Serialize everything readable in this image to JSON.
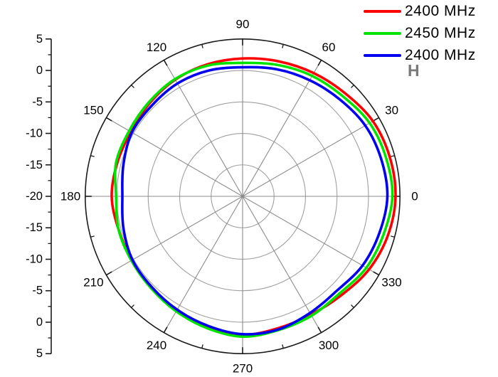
{
  "chart_data": {
    "type": "line",
    "polar": true,
    "title": "",
    "xlabel": "",
    "ylabel": "",
    "angular_unit": "degrees",
    "angle_labels": [
      "0",
      "30",
      "60",
      "90",
      "120",
      "150",
      "180",
      "210",
      "240",
      "270",
      "300",
      "330"
    ],
    "angle_tick_major_deg": 30,
    "angle_tick_minor_deg": 15,
    "radial_axis": {
      "center_value": -20,
      "outer_value": 5,
      "major_step": 5,
      "minor_step": 2.5,
      "tick_labels": [
        "5",
        "0",
        "-5",
        "-10",
        "-15",
        "-20",
        "-15",
        "-10",
        "-5",
        "0",
        "5"
      ],
      "grid_circle_values": [
        -15,
        -10,
        -5,
        0
      ]
    },
    "ylim": [
      -20,
      5
    ],
    "x": [
      0,
      15,
      30,
      45,
      60,
      75,
      90,
      105,
      120,
      135,
      150,
      165,
      180,
      195,
      210,
      225,
      240,
      255,
      270,
      285,
      300,
      315,
      330,
      345
    ],
    "series": [
      {
        "name": "2400 MHz",
        "color": "#ff0000",
        "values": [
          4.3,
          4.2,
          3.9,
          3.1,
          2.6,
          2.2,
          1.9,
          1.7,
          1.4,
          0.9,
          0.5,
          0.6,
          0.8,
          0.4,
          0.3,
          0.5,
          0.8,
          1.4,
          2.0,
          1.7,
          1.7,
          2.2,
          3.2,
          3.9
        ]
      },
      {
        "name": "2450 MHz",
        "color": "#00e300",
        "values": [
          3.8,
          3.6,
          3.3,
          2.5,
          2.1,
          1.6,
          1.2,
          1.5,
          1.5,
          1.1,
          0.8,
          0.8,
          0.1,
          0.4,
          0.4,
          0.6,
          1.1,
          1.7,
          2.3,
          2.0,
          1.9,
          1.8,
          2.7,
          3.2
        ]
      },
      {
        "name": "2400 MHz",
        "color": "#0000f0",
        "values": [
          3.0,
          2.8,
          2.5,
          1.8,
          1.3,
          0.9,
          0.5,
          0.7,
          0.7,
          0.4,
          0.3,
          -0.4,
          -0.9,
          -0.4,
          0.2,
          0.4,
          0.8,
          1.3,
          1.9,
          1.9,
          1.4,
          1.2,
          2.0,
          2.5
        ]
      }
    ],
    "legend_position": "top-right",
    "grid": true,
    "annotations": [
      {
        "text": "H",
        "color": "#7a7a7a"
      }
    ],
    "colors": {
      "grid_circles": "#a0a0a0",
      "spokes": "#8c8c8c",
      "axis": "#1a1a1a"
    }
  }
}
